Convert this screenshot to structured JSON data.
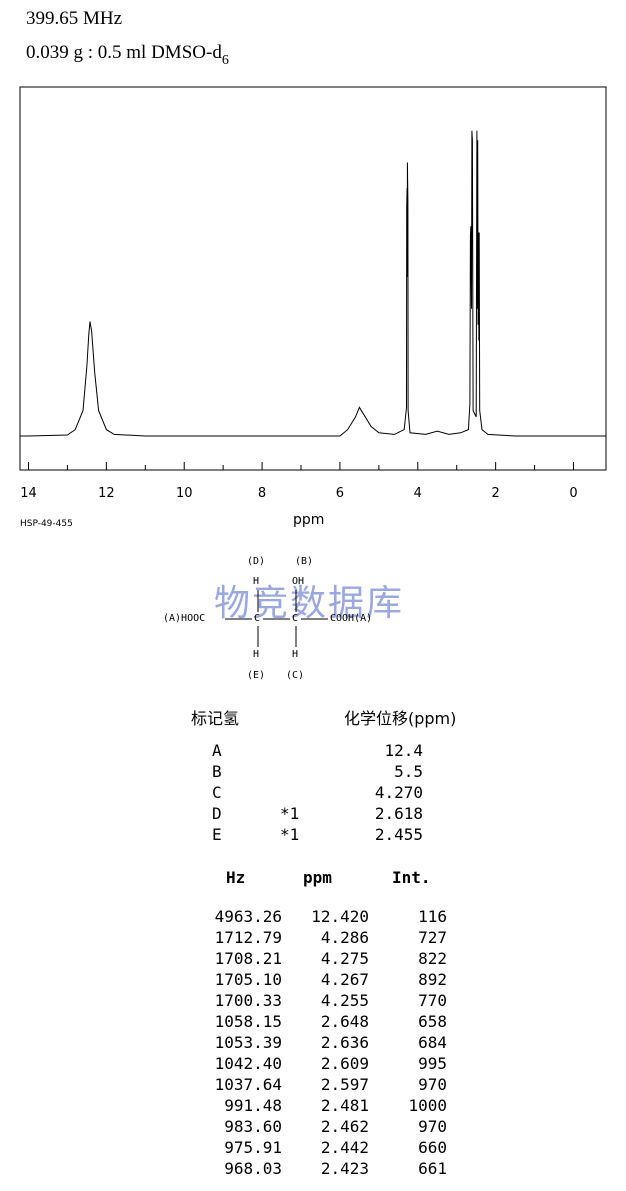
{
  "header": {
    "frequency": "399.65 MHz",
    "sample_main": "0.039 g : 0.5 ml DMSO-d",
    "sample_sub": "6"
  },
  "chart_data": {
    "type": "line",
    "title": "",
    "xlabel": "ppm",
    "ylabel": "",
    "xlim": [
      14,
      0
    ],
    "xticks": [
      "14",
      "12",
      "10",
      "8",
      "6",
      "4",
      "2",
      "0"
    ],
    "xtick_values": [
      14,
      12,
      10,
      8,
      6,
      4,
      2,
      0
    ],
    "code": "HSP-49-455",
    "grid": false,
    "series": [
      {
        "x": [
          14.0,
          13.0,
          12.8,
          12.6,
          12.5,
          12.45,
          12.42,
          12.38,
          12.3,
          12.2,
          12.0,
          11.8,
          11.0,
          6.0,
          5.8,
          5.6,
          5.5,
          5.4,
          5.2,
          5.0,
          4.6,
          4.35,
          4.29,
          4.286,
          4.275,
          4.27,
          4.267,
          4.255,
          4.25,
          4.2,
          3.8,
          3.5,
          3.2,
          2.9,
          2.7,
          2.66,
          2.648,
          2.636,
          2.62,
          2.609,
          2.597,
          2.58,
          2.5,
          2.481,
          2.47,
          2.462,
          2.45,
          2.442,
          2.43,
          2.423,
          2.41,
          2.35,
          2.2,
          1.5,
          0.0
        ],
        "y": [
          0,
          0.3,
          2,
          8,
          22,
          32,
          36,
          33,
          20,
          8,
          2,
          0.5,
          0,
          0,
          2,
          6,
          9,
          7,
          3,
          1,
          0.5,
          2,
          9,
          72,
          78,
          50,
          86,
          74,
          8,
          1,
          0.5,
          1.5,
          0.5,
          1,
          2,
          10,
          63,
          66,
          40,
          96,
          93,
          8,
          6,
          96,
          40,
          93,
          35,
          64,
          30,
          64,
          8,
          2,
          0.5,
          0,
          0
        ]
      }
    ]
  },
  "structure": {
    "label_D": "(D)",
    "label_B": "(B)",
    "H_top": "H",
    "OH_top": "OH",
    "left_group": "(A)HOOC",
    "C1": "C",
    "C2": "C",
    "right_group": "COOH(A)",
    "H_bottom_1": "H",
    "H_bottom_2": "H",
    "label_E": "(E)",
    "label_C": "(C)"
  },
  "watermark": "物竞数据库",
  "assignments": {
    "header_label": "标记氢",
    "header_shift": "化学位移(ppm)",
    "rows": [
      {
        "label": "A",
        "note": "",
        "shift": "12.4"
      },
      {
        "label": "B",
        "note": "",
        "shift": "5.5"
      },
      {
        "label": "C",
        "note": "",
        "shift": "4.270"
      },
      {
        "label": "D",
        "note": "*1",
        "shift": "2.618"
      },
      {
        "label": "E",
        "note": "*1",
        "shift": "2.455"
      }
    ]
  },
  "peaks": {
    "headers": [
      "Hz",
      "ppm",
      "Int."
    ],
    "rows": [
      [
        "4963.26",
        "12.420",
        "116"
      ],
      [
        "1712.79",
        "4.286",
        "727"
      ],
      [
        "1708.21",
        "4.275",
        "822"
      ],
      [
        "1705.10",
        "4.267",
        "892"
      ],
      [
        "1700.33",
        "4.255",
        "770"
      ],
      [
        "1058.15",
        "2.648",
        "658"
      ],
      [
        "1053.39",
        "2.636",
        "684"
      ],
      [
        "1042.40",
        "2.609",
        "995"
      ],
      [
        "1037.64",
        "2.597",
        "970"
      ],
      [
        "991.48",
        "2.481",
        "1000"
      ],
      [
        "983.60",
        "2.462",
        "970"
      ],
      [
        "975.91",
        "2.442",
        "660"
      ],
      [
        "968.03",
        "2.423",
        "661"
      ]
    ]
  }
}
